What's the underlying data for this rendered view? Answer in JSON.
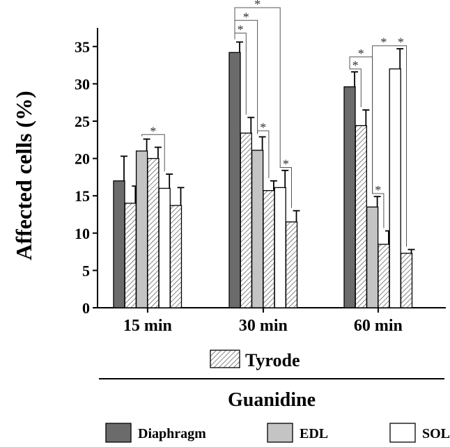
{
  "chart_data": {
    "type": "bar",
    "title": "",
    "xlabel": "",
    "ylabel": "Affected cells (%)",
    "ylim": [
      0,
      37
    ],
    "yticks": [
      "0",
      "5",
      "10",
      "15",
      "20",
      "25",
      "30",
      "35"
    ],
    "categories": [
      "15 min",
      "30 min",
      "60 min"
    ],
    "bar_order": [
      "Diaphragm",
      "Diaphragm Tyrode",
      "EDL",
      "EDL Tyrode",
      "SOL",
      "SOL Tyrode"
    ],
    "series": [
      {
        "name": "Diaphragm",
        "kind": "guanidine",
        "color": "#6b6b6b",
        "values": [
          17.0,
          34.2,
          29.6
        ],
        "errors": [
          3.3,
          1.4,
          2.0
        ]
      },
      {
        "name": "Diaphragm Tyrode",
        "kind": "tyrode",
        "color": "#ffffff",
        "values": [
          14.0,
          23.4,
          24.4
        ],
        "errors": [
          2.3,
          2.1,
          2.1
        ]
      },
      {
        "name": "EDL",
        "kind": "guanidine",
        "color": "#c4c4c4",
        "values": [
          21.0,
          21.1,
          13.5
        ],
        "errors": [
          1.6,
          1.8,
          1.4
        ]
      },
      {
        "name": "EDL Tyrode",
        "kind": "tyrode",
        "color": "#ffffff",
        "values": [
          20.0,
          15.7,
          8.5
        ],
        "errors": [
          1.5,
          1.3,
          1.8
        ]
      },
      {
        "name": "SOL",
        "kind": "guanidine",
        "color": "#ffffff",
        "values": [
          16.0,
          16.1,
          32.0
        ],
        "errors": [
          1.9,
          2.3,
          2.7
        ]
      },
      {
        "name": "SOL Tyrode",
        "kind": "tyrode",
        "color": "#ffffff",
        "values": [
          13.7,
          11.5,
          7.3
        ],
        "errors": [
          2.4,
          1.5,
          0.5
        ]
      }
    ],
    "significance": [
      {
        "category": 0,
        "from": 2,
        "to": 4,
        "level": 23.2,
        "label": "*"
      },
      {
        "category": 1,
        "from": 0,
        "to": 1,
        "level": 36.8,
        "label": "*"
      },
      {
        "category": 1,
        "from": 0,
        "to": 2,
        "level": 38.5,
        "label": "*"
      },
      {
        "category": 1,
        "from": 0,
        "to": 4,
        "level": 40.2,
        "label": "*"
      },
      {
        "category": 1,
        "from": 2,
        "to": 3,
        "level": 23.7,
        "label": "*"
      },
      {
        "category": 1,
        "from": 4,
        "to": 5,
        "level": 18.8,
        "label": "*"
      },
      {
        "category": 2,
        "from": 0,
        "to": 1,
        "level": 32.0,
        "label": "*"
      },
      {
        "category": 2,
        "from": 0,
        "to": 2,
        "level": 33.6,
        "label": "*"
      },
      {
        "category": 2,
        "from": 2,
        "to": 3,
        "level": 15.3,
        "label": "*"
      },
      {
        "category": 2,
        "from": 2,
        "to": 4,
        "level": 35.1,
        "label": "*"
      },
      {
        "category": 2,
        "from": 4,
        "to": 5,
        "level": 35.1,
        "label": "*"
      }
    ],
    "legend": {
      "tyrode_label": "Tyrode",
      "group_label": "Guanidine",
      "items": [
        {
          "label": "Diaphragm",
          "color": "#6b6b6b"
        },
        {
          "label": "EDL",
          "color": "#c4c4c4"
        },
        {
          "label": "SOL",
          "color": "#ffffff"
        }
      ]
    }
  }
}
